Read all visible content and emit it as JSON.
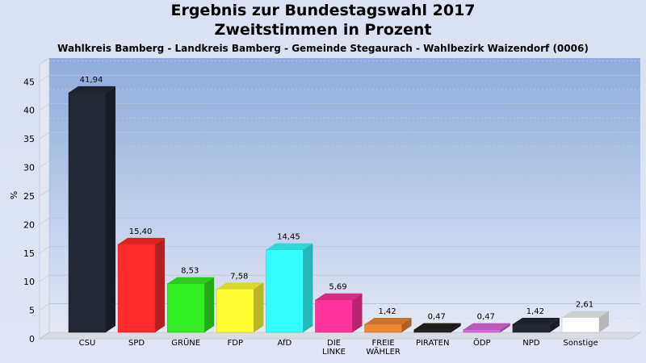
{
  "chart_data": {
    "type": "bar",
    "title": "Ergebnis zur Bundestagswahl 2017",
    "subtitle": "Zweitstimmen in Prozent",
    "subsubtitle": "Wahlkreis Bamberg - Landkreis Bamberg - Gemeinde Stegaurach - Wahlbezirk Waizendorf (0006)",
    "ylabel": "%",
    "ylim": [
      0,
      48
    ],
    "yticks": [
      0,
      5,
      10,
      15,
      20,
      25,
      30,
      35,
      40,
      45
    ],
    "grid": true,
    "bars": [
      {
        "label": [
          "CSU"
        ],
        "value": 41.94,
        "value_label": "41,94",
        "color": "#222833"
      },
      {
        "label": [
          "SPD"
        ],
        "value": 15.4,
        "value_label": "15,40",
        "color": "#ff2a2a"
      },
      {
        "label": [
          "GRÜNE"
        ],
        "value": 8.53,
        "value_label": "8,53",
        "color": "#33ee22"
      },
      {
        "label": [
          "FDP"
        ],
        "value": 7.58,
        "value_label": "7,58",
        "color": "#ffff33"
      },
      {
        "label": [
          "AfD"
        ],
        "value": 14.45,
        "value_label": "14,45",
        "color": "#33ffff"
      },
      {
        "label": [
          "DIE",
          "LINKE"
        ],
        "value": 5.69,
        "value_label": "5,69",
        "color": "#ff3399"
      },
      {
        "label": [
          "FREIE",
          "WÄHLER"
        ],
        "value": 1.42,
        "value_label": "1,42",
        "color": "#ee8833"
      },
      {
        "label": [
          "PIRATEN"
        ],
        "value": 0.47,
        "value_label": "0,47",
        "color": "#222222"
      },
      {
        "label": [
          "ÖDP"
        ],
        "value": 0.47,
        "value_label": "0,47",
        "color": "#dd66dd"
      },
      {
        "label": [
          "NPD"
        ],
        "value": 1.42,
        "value_label": "1,42",
        "color": "#222833"
      },
      {
        "label": [
          "Sonstige"
        ],
        "value": 2.61,
        "value_label": "2,61",
        "color": "#ffffff"
      }
    ]
  }
}
